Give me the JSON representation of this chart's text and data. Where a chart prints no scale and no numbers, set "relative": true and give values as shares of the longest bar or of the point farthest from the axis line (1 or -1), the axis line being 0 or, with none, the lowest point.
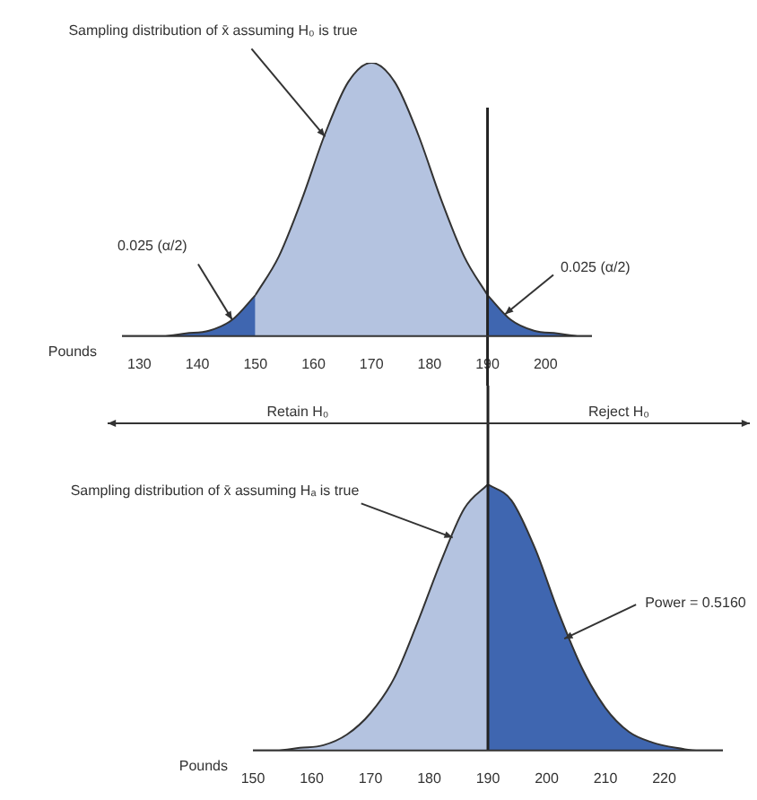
{
  "chart_data": [
    {
      "type": "area",
      "relative": true,
      "xlabel": "Pounds",
      "xlim": [
        127,
        208
      ],
      "xticks": [
        130,
        140,
        150,
        160,
        170,
        180,
        190,
        200
      ],
      "series": [
        {
          "color": "#3f66b0",
          "x": [
            127,
            130,
            134,
            138,
            142,
            146,
            150
          ],
          "values": [
            0,
            0,
            0,
            0.01,
            0.02,
            0.06,
            0.15
          ]
        },
        {
          "color": "#b4c3e0",
          "x": [
            150,
            154,
            158,
            162,
            166,
            170,
            174,
            178,
            182,
            186,
            190
          ],
          "values": [
            0.15,
            0.29,
            0.5,
            0.74,
            0.93,
            1,
            0.93,
            0.74,
            0.5,
            0.29,
            0.15
          ]
        },
        {
          "color": "#3f66b0",
          "x": [
            190,
            194,
            198,
            202,
            206,
            208
          ],
          "values": [
            0.15,
            0.06,
            0.02,
            0.01,
            0,
            0
          ]
        }
      ],
      "ref_lines": [
        {
          "axis": "x",
          "value": 190,
          "color": "#222222"
        }
      ],
      "annotations": [
        {
          "text": "Sampling distribution of x̄ assuming H₀ is true",
          "x": 162,
          "y": 0.73
        },
        {
          "text": "0.025 (α/2)",
          "x": 146,
          "y": 0.06
        },
        {
          "text": "0.025 (α/2)",
          "x": 193,
          "y": 0.08
        }
      ]
    },
    {
      "type": "area",
      "relative": true,
      "xlabel": "Pounds",
      "xlim": [
        150,
        230
      ],
      "xticks": [
        150,
        160,
        170,
        180,
        190,
        200,
        210,
        220
      ],
      "series": [
        {
          "color": "#b4c3e0",
          "x": [
            150,
            154,
            158,
            162,
            166,
            170,
            174,
            178,
            182,
            186,
            190
          ],
          "values": [
            0,
            0,
            0.01,
            0.02,
            0.06,
            0.14,
            0.27,
            0.48,
            0.71,
            0.91,
            1
          ]
        },
        {
          "color": "#3f66b0",
          "x": [
            190,
            194,
            198,
            202,
            206,
            210,
            214,
            218,
            222,
            226,
            230
          ],
          "values": [
            1,
            0.94,
            0.76,
            0.52,
            0.31,
            0.16,
            0.07,
            0.03,
            0.01,
            0,
            0
          ]
        }
      ],
      "ref_lines": [
        {
          "axis": "x",
          "value": 190,
          "color": "#222222"
        }
      ],
      "annotations": [
        "Retain H₀",
        "Reject H₀",
        {
          "text": "Sampling distribution of x̄ assuming Hₐ is true",
          "x": 184,
          "y": 0.8
        },
        {
          "text": "Power = 0.5160",
          "x": 203,
          "y": 0.42
        }
      ]
    }
  ]
}
